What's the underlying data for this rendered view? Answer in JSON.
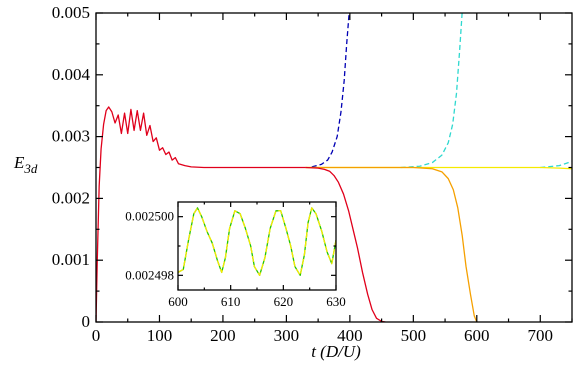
{
  "chart_data": [
    {
      "type": "line",
      "xlabel": "t (D/U)",
      "ylabel": "E_3d",
      "ylabel_main": "E",
      "ylabel_sub": "3d",
      "xlim": [
        0,
        750
      ],
      "ylim": [
        0,
        0.005
      ],
      "xticks": [
        0,
        100,
        200,
        300,
        400,
        500,
        600,
        700
      ],
      "yticks": [
        0,
        0.001,
        0.002,
        0.003,
        0.004,
        0.005
      ],
      "xtick_labels": [
        "0",
        "100",
        "200",
        "300",
        "400",
        "500",
        "600",
        "700"
      ],
      "ytick_labels": [
        "0",
        "0.001",
        "0.002",
        "0.003",
        "0.004",
        "0.005"
      ],
      "grid": false,
      "colors": {
        "red": "#e0001b",
        "orange": "#f5a000",
        "blue": "#0000b4",
        "cyan": "#2ed8cf",
        "yellow": "#f5ea00"
      },
      "series": [
        {
          "color": "#0000b4",
          "style": "dashed",
          "x": [
            340,
            355,
            365,
            372,
            380,
            386,
            391,
            395,
            399
          ],
          "y": [
            0.00251,
            0.00255,
            0.00262,
            0.00275,
            0.003,
            0.0034,
            0.0039,
            0.0045,
            0.00502
          ]
        },
        {
          "color": "#2ed8cf",
          "style": "dashed",
          "x": [
            480,
            510,
            530,
            545,
            555,
            562,
            568,
            573,
            577
          ],
          "y": [
            0.0025,
            0.00252,
            0.00258,
            0.0027,
            0.0029,
            0.0032,
            0.0037,
            0.0044,
            0.00502
          ]
        },
        {
          "color": "#2ed8cf",
          "style": "dashed",
          "x": [
            700,
            730,
            750
          ],
          "y": [
            0.0025,
            0.00253,
            0.0026
          ]
        },
        {
          "color": "#f5ea00",
          "style": "solid",
          "x": [
            330,
            500,
            650,
            700,
            730,
            750
          ],
          "y": [
            0.0025,
            0.0025,
            0.0025,
            0.0025,
            0.00249,
            0.00248
          ]
        },
        {
          "color": "#f5a000",
          "style": "solid",
          "x": [
            330,
            500,
            530,
            545,
            555,
            563,
            570,
            577,
            583,
            590,
            596,
            600
          ],
          "y": [
            0.0025,
            0.0025,
            0.00248,
            0.00243,
            0.00232,
            0.00214,
            0.00185,
            0.0014,
            0.0009,
            0.00045,
            0.0001,
            0.0
          ]
        },
        {
          "color": "#e0001b",
          "style": "solid",
          "x": [
            0,
            2,
            5,
            8,
            12,
            16,
            20,
            25,
            30,
            35,
            40,
            45,
            50,
            55,
            60,
            65,
            70,
            75,
            80,
            85,
            90,
            95,
            100,
            105,
            110,
            115,
            120,
            125,
            130,
            140,
            150,
            170,
            200,
            250,
            300,
            330
          ],
          "y": [
            0.0,
            0.001,
            0.0022,
            0.0028,
            0.0032,
            0.00342,
            0.00348,
            0.0034,
            0.00322,
            0.00335,
            0.00305,
            0.00338,
            0.00305,
            0.00344,
            0.0031,
            0.00342,
            0.0031,
            0.00338,
            0.00302,
            0.00318,
            0.00292,
            0.00298,
            0.00278,
            0.00282,
            0.00271,
            0.00275,
            0.00262,
            0.00266,
            0.00256,
            0.00253,
            0.00251,
            0.0025,
            0.0025,
            0.0025,
            0.0025,
            0.0025
          ]
        },
        {
          "color": "#e0001b",
          "style": "solid",
          "x": [
            330,
            350,
            360,
            368,
            375,
            382,
            390,
            398,
            405,
            412,
            420,
            428,
            435,
            442,
            450,
            456
          ],
          "y": [
            0.0025,
            0.00249,
            0.00247,
            0.00244,
            0.00237,
            0.00226,
            0.00207,
            0.0018,
            0.0015,
            0.0012,
            0.0008,
            0.00045,
            0.0002,
            6e-05,
            1e-05,
            0.0
          ]
        }
      ]
    },
    {
      "type": "line",
      "xlim": [
        600,
        630
      ],
      "ylim": [
        0.0024975,
        0.0025005
      ],
      "xticks": [
        600,
        610,
        620,
        630
      ],
      "yticks": [
        0.002498,
        0.0025
      ],
      "xtick_labels": [
        "600",
        "610",
        "620",
        "630"
      ],
      "ytick_labels": [
        "0.002498",
        "0.002500"
      ],
      "grid": false,
      "series": [
        {
          "color": "#22c400",
          "style": "solid",
          "x": [
            600,
            601,
            602,
            603,
            603.7,
            604.5,
            605.5,
            606.5,
            607.5,
            608.3,
            609,
            609.8,
            610.8,
            611.8,
            612.8,
            613.8,
            614.5,
            615.5,
            616.5,
            617.5,
            618.6,
            619.5,
            620.5,
            621.4,
            622.2,
            623.2,
            624,
            624.7,
            625.4,
            626.2,
            627.3,
            628.3,
            629.2,
            630
          ],
          "y": [
            0.0024981,
            0.0024982,
            0.0024992,
            0.0025001,
            0.0025003,
            0.0025,
            0.0024995,
            0.0024991,
            0.0024985,
            0.0024981,
            0.0024986,
            0.0024996,
            0.0025002,
            0.0025001,
            0.0024996,
            0.002499,
            0.0024983,
            0.002498,
            0.0024986,
            0.0024996,
            0.0025002,
            0.0025002,
            0.0024996,
            0.002499,
            0.0024983,
            0.002498,
            0.0024987,
            0.0024998,
            0.0025003,
            0.0025001,
            0.0024995,
            0.0024988,
            0.0024984,
            0.0024992
          ]
        },
        {
          "color": "#f5ea00",
          "style": "dashed",
          "x": [
            600,
            601,
            602,
            603,
            603.7,
            604.5,
            605.5,
            606.5,
            607.5,
            608.3,
            609,
            609.8,
            610.8,
            611.8,
            612.8,
            613.8,
            614.5,
            615.5,
            616.5,
            617.5,
            618.6,
            619.5,
            620.5,
            621.4,
            622.2,
            623.2,
            624,
            624.7,
            625.4,
            626.2,
            627.3,
            628.3,
            629.2,
            630
          ],
          "y": [
            0.0024981,
            0.0024982,
            0.0024992,
            0.0025001,
            0.0025003,
            0.0025,
            0.0024995,
            0.0024991,
            0.0024985,
            0.0024981,
            0.0024986,
            0.0024996,
            0.0025002,
            0.0025001,
            0.0024996,
            0.002499,
            0.0024983,
            0.002498,
            0.0024986,
            0.0024996,
            0.0025002,
            0.0025002,
            0.0024996,
            0.002499,
            0.0024983,
            0.002498,
            0.0024987,
            0.0024998,
            0.0025003,
            0.0025001,
            0.0024995,
            0.0024988,
            0.0024984,
            0.0024992
          ]
        }
      ]
    }
  ]
}
